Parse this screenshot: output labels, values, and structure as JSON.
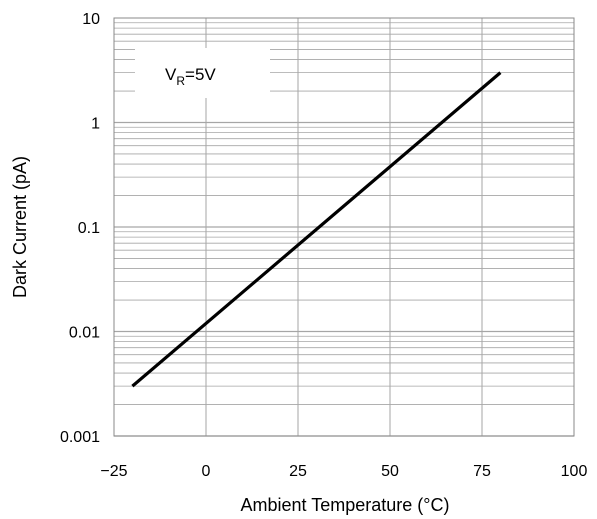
{
  "chart_data": {
    "type": "line",
    "xlabel": "Ambient Temperature (°C)",
    "ylabel": "Dark Current (pA)",
    "xlim": [
      -25,
      100
    ],
    "ylim": [
      0.001,
      10
    ],
    "yscale": "log",
    "grid": true,
    "xticks": [
      -25,
      0,
      25,
      50,
      75,
      100
    ],
    "xtick_labels": [
      "−25",
      "0",
      "25",
      "50",
      "75",
      "100"
    ],
    "yticks": [
      0.001,
      0.01,
      0.1,
      1,
      10
    ],
    "ytick_labels": [
      "0.001",
      "0.01",
      "0.1",
      "1",
      "10"
    ],
    "series": [
      {
        "x": [
          -20,
          80
        ],
        "y": [
          0.003,
          3
        ]
      }
    ],
    "annotation": {
      "main": "V",
      "sub": "R",
      "rest": "=5V"
    },
    "colors": {
      "line": "#000000",
      "grid": "#a6a6a6",
      "frame": "#888888"
    }
  }
}
